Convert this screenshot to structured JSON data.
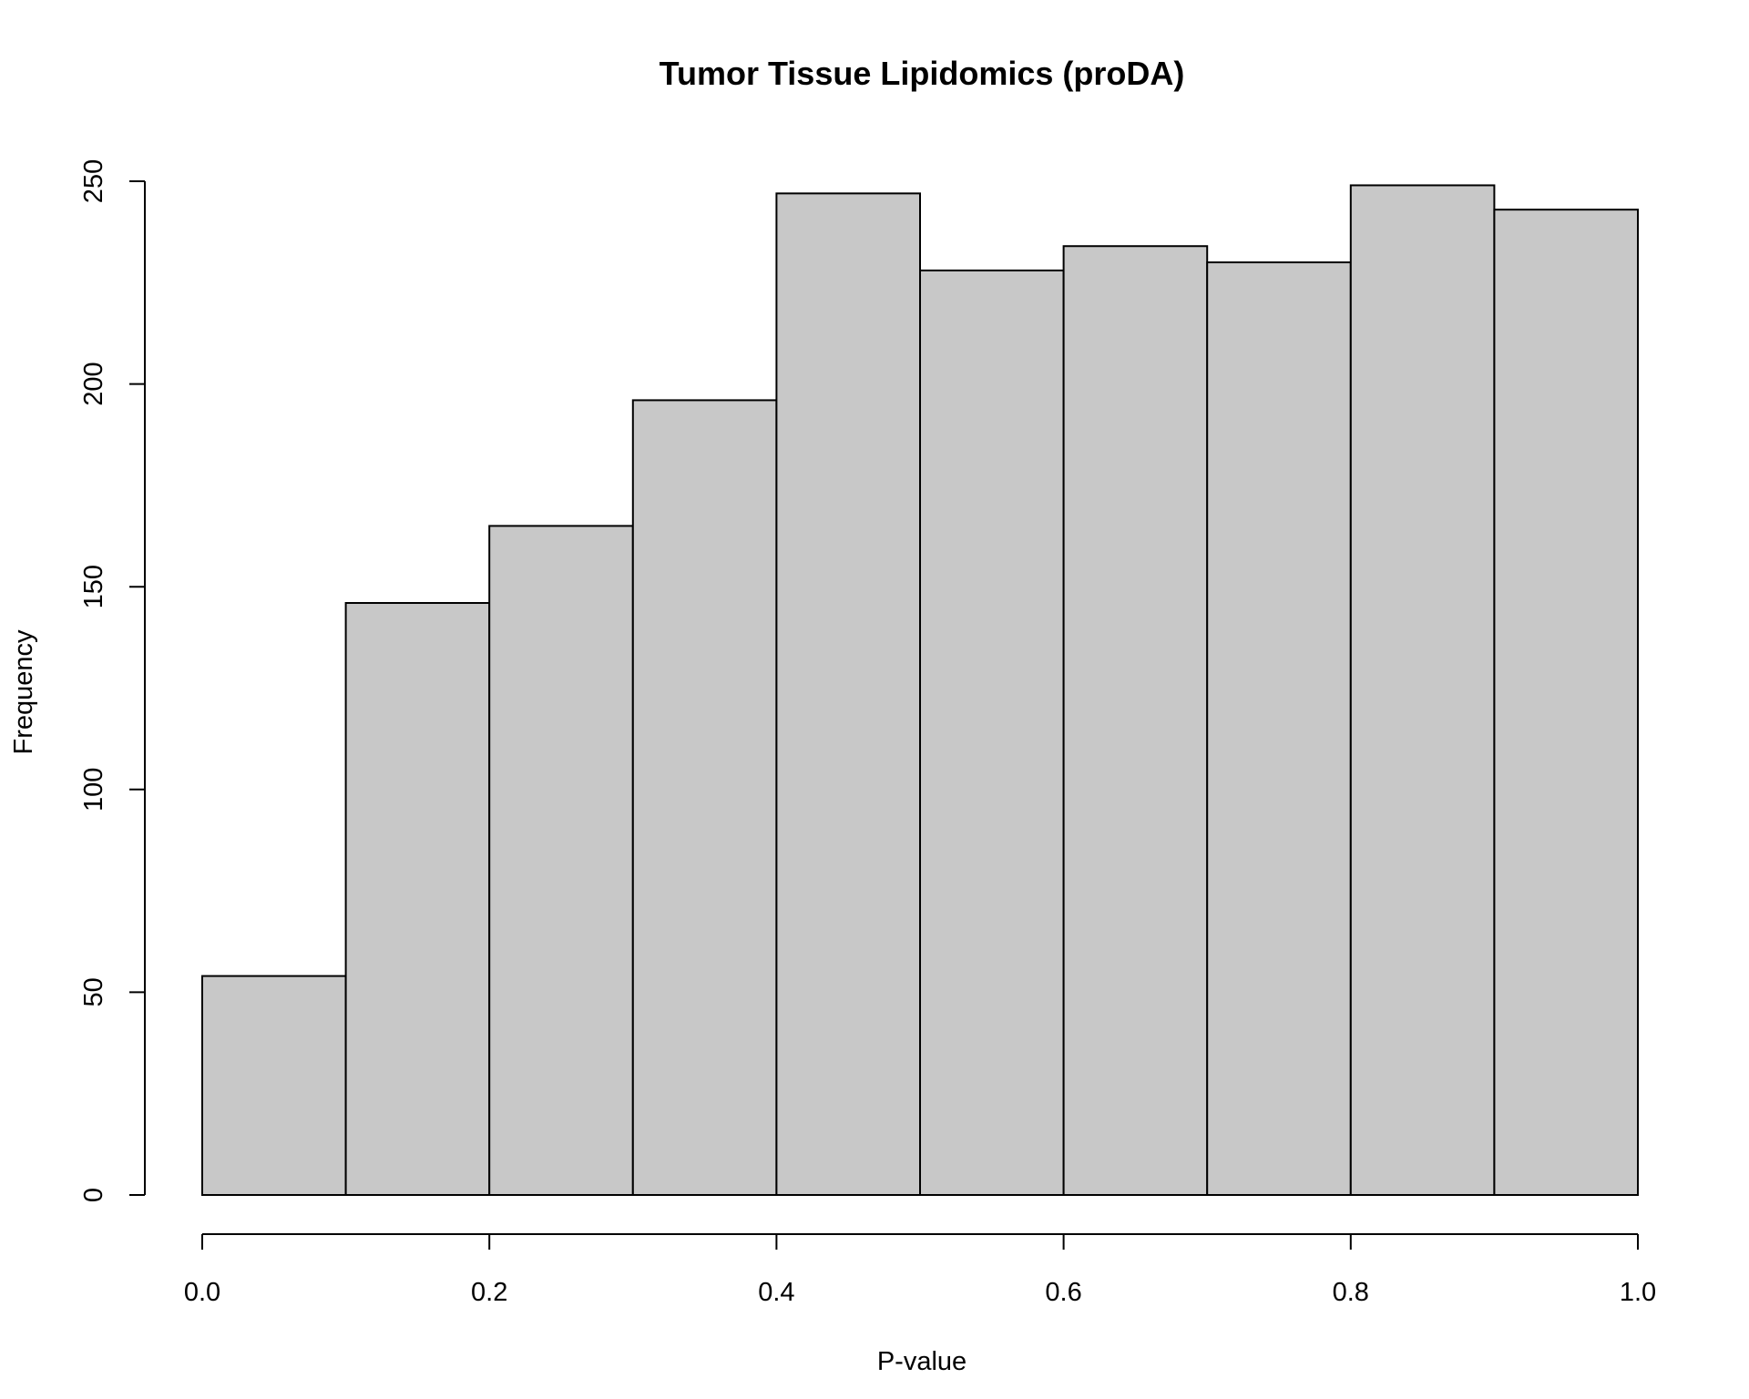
{
  "chart_data": {
    "type": "bar",
    "histogram": true,
    "title": "Tumor Tissue Lipidomics (proDA)",
    "xlabel": "P-value",
    "ylabel": "Frequency",
    "bin_edges": [
      0.0,
      0.1,
      0.2,
      0.3,
      0.4,
      0.5,
      0.6,
      0.7,
      0.8,
      0.9,
      1.0
    ],
    "categories": [
      "0.0-0.1",
      "0.1-0.2",
      "0.2-0.3",
      "0.3-0.4",
      "0.4-0.5",
      "0.5-0.6",
      "0.6-0.7",
      "0.7-0.8",
      "0.8-0.9",
      "0.9-1.0"
    ],
    "values": [
      54,
      146,
      165,
      196,
      247,
      228,
      234,
      230,
      249,
      243
    ],
    "xlim": [
      0.0,
      1.0
    ],
    "ylim": [
      0,
      250
    ],
    "xticks": [
      0.0,
      0.2,
      0.4,
      0.6,
      0.8,
      1.0
    ],
    "xtick_labels": [
      "0.0",
      "0.2",
      "0.4",
      "0.6",
      "0.8",
      "1.0"
    ],
    "yticks": [
      0,
      50,
      100,
      150,
      200,
      250
    ],
    "ytick_labels": [
      "0",
      "50",
      "100",
      "150",
      "200",
      "250"
    ],
    "grid": false,
    "bar_color": "#c8c8c8",
    "edge_color": "#000000"
  }
}
